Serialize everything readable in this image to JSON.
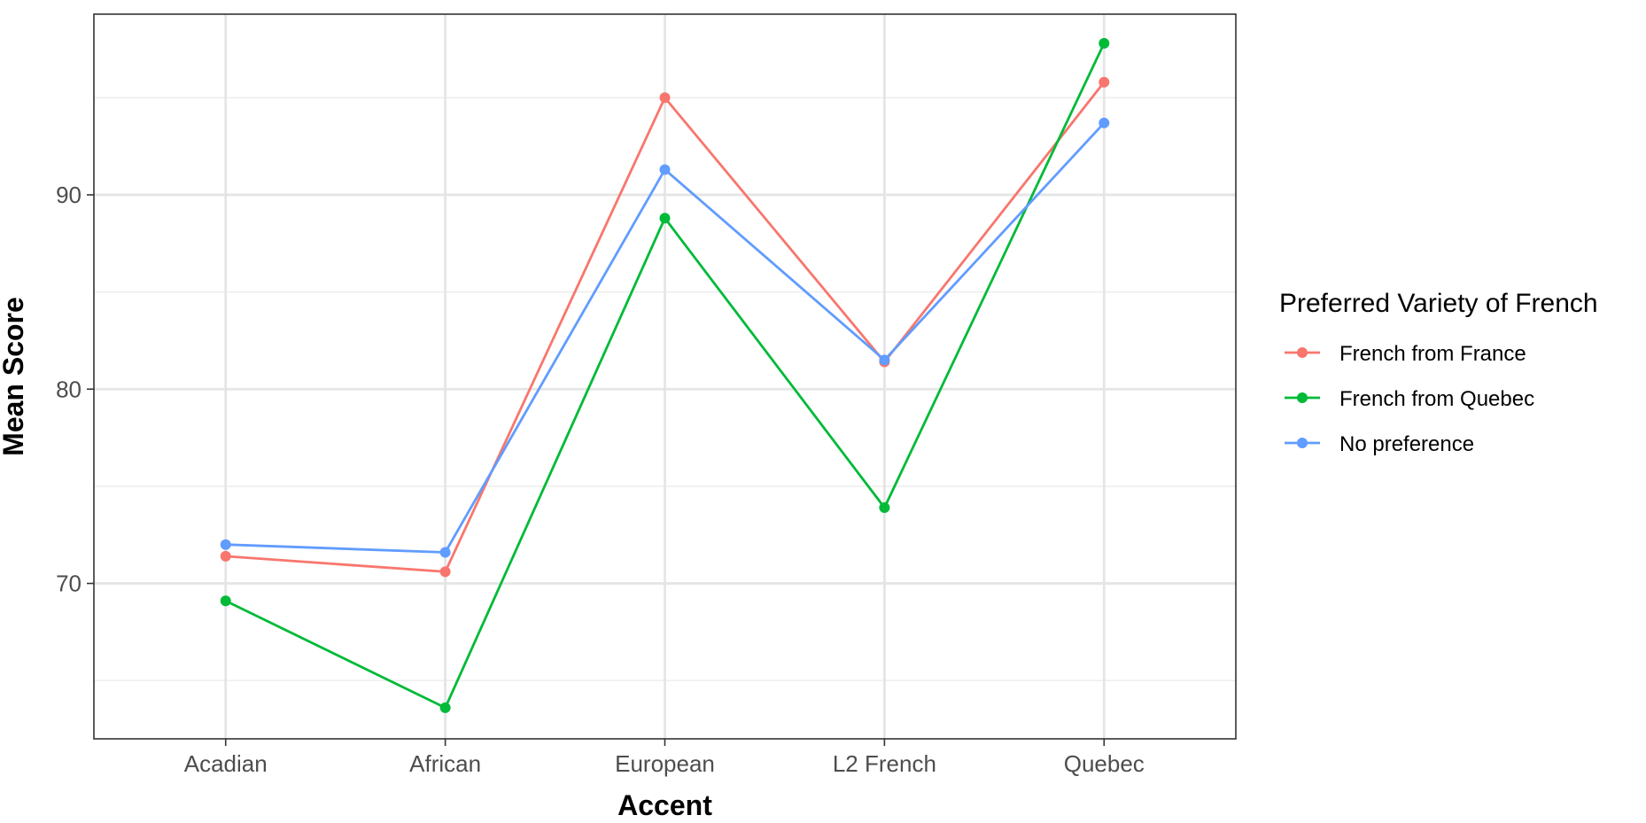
{
  "chart_data": {
    "type": "line",
    "categories": [
      "Acadian",
      "African",
      "European",
      "L2 French",
      "Quebec"
    ],
    "xlabel": "Accent",
    "ylabel": "Mean Score",
    "ylim": [
      62.0,
      99.3
    ],
    "y_ticks": [
      70,
      80,
      90
    ],
    "y_tick_labels": [
      "70",
      "80",
      "90"
    ],
    "y_minor_ticks": [
      65,
      75,
      85,
      95
    ],
    "grid": true,
    "legend": {
      "title": "Preferred Variety of French",
      "position": "right"
    },
    "series": [
      {
        "name": "French from France",
        "color": "#F8766D",
        "values": [
          71.4,
          70.6,
          95.0,
          81.4,
          95.8
        ]
      },
      {
        "name": "French from Quebec",
        "color": "#00BA38",
        "values": [
          69.1,
          63.6,
          88.8,
          73.9,
          97.8
        ]
      },
      {
        "name": "No preference",
        "color": "#619CFF",
        "values": [
          72.0,
          71.6,
          91.3,
          81.5,
          93.7
        ]
      }
    ]
  }
}
